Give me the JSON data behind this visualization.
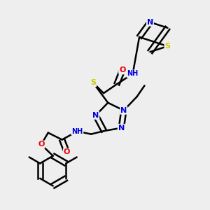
{
  "background_color": "#eeeeee",
  "atom_colors": {
    "C": "#000000",
    "N": "#0000dd",
    "O": "#ee0000",
    "S": "#cccc00",
    "H": "#888888"
  },
  "bond_color": "#000000",
  "bond_width": 1.8,
  "figsize": [
    3.0,
    3.0
  ],
  "dpi": 100
}
